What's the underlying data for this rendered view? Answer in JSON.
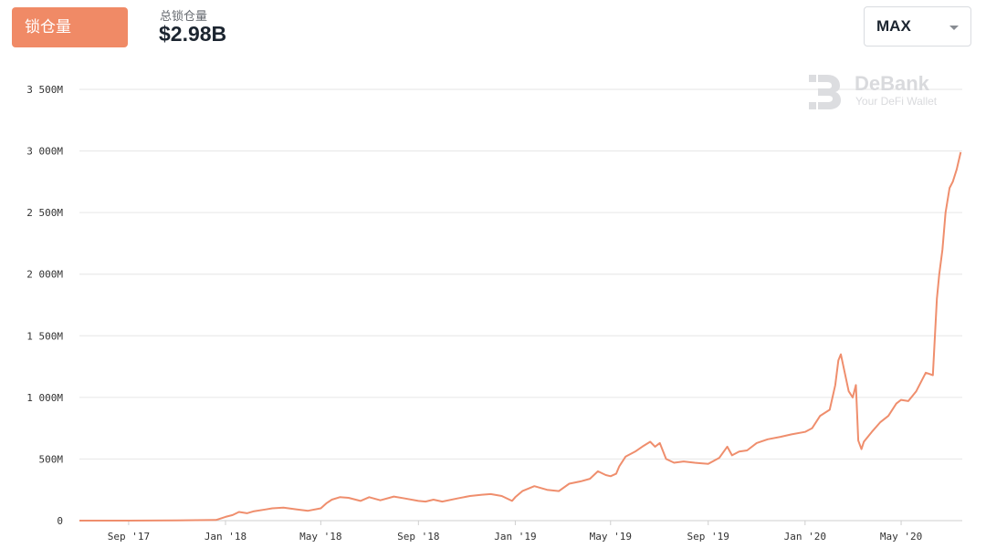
{
  "header": {
    "tab_label": "锁仓量",
    "tvl_label": "总锁仓量",
    "tvl_value": "$2.98B",
    "range_select": "MAX"
  },
  "watermark": {
    "brand": "DeBank",
    "tagline": "Your DeFi Wallet"
  },
  "colors": {
    "accent": "#f08a66",
    "line": "#ef8e6d",
    "grid": "#e6e6e6"
  },
  "chart_data": {
    "type": "line",
    "title": "",
    "xlabel": "",
    "ylabel": "",
    "ylim": [
      0,
      3500
    ],
    "y_ticks": [
      0,
      500,
      1000,
      1500,
      2000,
      2500,
      3000,
      3500
    ],
    "y_tick_labels": [
      "0",
      "500M",
      "1 000M",
      "1 500M",
      "2 000M",
      "2 500M",
      "3 000M",
      "3 500M"
    ],
    "x_ticks": [
      "2017-09-01",
      "2018-01-01",
      "2018-05-01",
      "2018-09-01",
      "2019-01-01",
      "2019-05-01",
      "2019-09-01",
      "2020-01-01",
      "2020-05-01"
    ],
    "x_tick_labels": [
      "Sep '17",
      "Jan '18",
      "May '18",
      "Sep '18",
      "Jan '19",
      "May '19",
      "Sep '19",
      "Jan '20",
      "May '20"
    ],
    "xlim": [
      "2017-07-01",
      "2020-07-17"
    ],
    "grid": true,
    "series": [
      {
        "x": [
          "2017-07-01",
          "2017-09-01",
          "2017-11-01",
          "2017-12-20",
          "2018-01-01",
          "2018-01-10",
          "2018-01-18",
          "2018-01-28",
          "2018-02-05",
          "2018-02-20",
          "2018-03-01",
          "2018-03-15",
          "2018-04-01",
          "2018-04-15",
          "2018-05-01",
          "2018-05-08",
          "2018-05-15",
          "2018-05-25",
          "2018-06-05",
          "2018-06-20",
          "2018-07-01",
          "2018-07-15",
          "2018-08-01",
          "2018-08-15",
          "2018-09-01",
          "2018-09-10",
          "2018-09-20",
          "2018-10-01",
          "2018-10-20",
          "2018-11-05",
          "2018-11-20",
          "2018-12-01",
          "2018-12-15",
          "2018-12-28",
          "2019-01-01",
          "2019-01-10",
          "2019-01-25",
          "2019-02-10",
          "2019-02-25",
          "2019-03-10",
          "2019-03-25",
          "2019-04-05",
          "2019-04-15",
          "2019-04-25",
          "2019-05-01",
          "2019-05-08",
          "2019-05-12",
          "2019-05-20",
          "2019-06-01",
          "2019-06-10",
          "2019-06-20",
          "2019-06-26",
          "2019-07-02",
          "2019-07-10",
          "2019-07-20",
          "2019-08-01",
          "2019-08-15",
          "2019-09-01",
          "2019-09-15",
          "2019-09-25",
          "2019-10-01",
          "2019-10-10",
          "2019-10-20",
          "2019-11-01",
          "2019-11-15",
          "2019-12-01",
          "2019-12-15",
          "2020-01-01",
          "2020-01-10",
          "2020-01-20",
          "2020-02-01",
          "2020-02-08",
          "2020-02-12",
          "2020-02-15",
          "2020-02-20",
          "2020-02-25",
          "2020-03-01",
          "2020-03-05",
          "2020-03-08",
          "2020-03-12",
          "2020-03-15",
          "2020-03-25",
          "2020-04-05",
          "2020-04-15",
          "2020-04-25",
          "2020-05-01",
          "2020-05-10",
          "2020-05-20",
          "2020-06-01",
          "2020-06-10",
          "2020-06-15",
          "2020-06-18",
          "2020-06-22",
          "2020-06-26",
          "2020-07-01",
          "2020-07-05",
          "2020-07-10",
          "2020-07-15"
        ],
        "values": [
          0,
          0,
          2,
          5,
          30,
          45,
          70,
          60,
          75,
          90,
          100,
          105,
          90,
          80,
          100,
          140,
          170,
          190,
          185,
          160,
          190,
          165,
          195,
          180,
          160,
          155,
          170,
          155,
          180,
          200,
          210,
          215,
          200,
          160,
          190,
          240,
          280,
          250,
          240,
          300,
          320,
          340,
          400,
          370,
          360,
          380,
          440,
          520,
          560,
          600,
          640,
          600,
          630,
          500,
          470,
          480,
          470,
          460,
          510,
          600,
          530,
          560,
          570,
          630,
          660,
          680,
          700,
          720,
          750,
          850,
          900,
          1100,
          1300,
          1350,
          1200,
          1050,
          1000,
          1100,
          650,
          580,
          640,
          720,
          800,
          850,
          950,
          980,
          970,
          1050,
          1200,
          1180,
          1800,
          2000,
          2200,
          2500,
          2700,
          2750,
          2850,
          2990
        ]
      }
    ]
  }
}
